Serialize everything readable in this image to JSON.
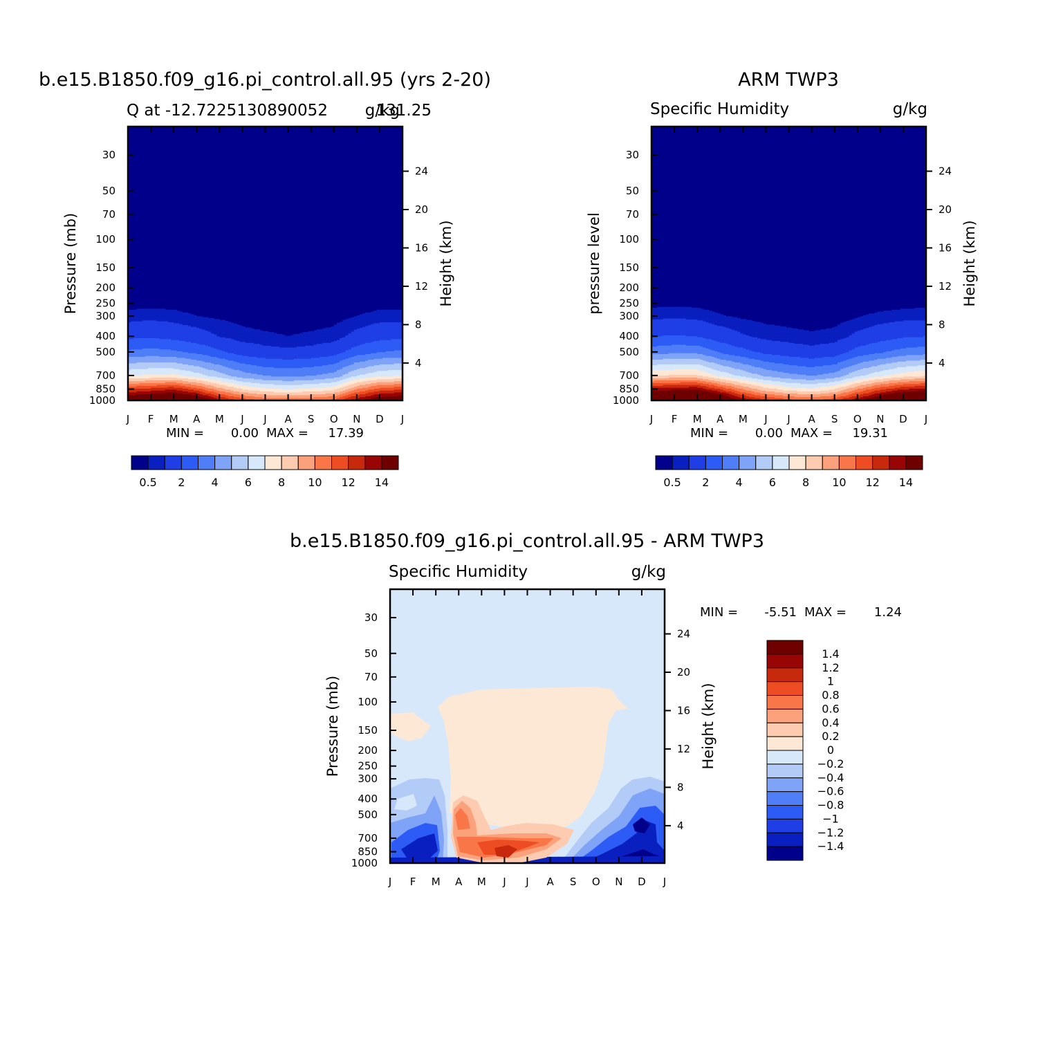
{
  "chart_data": [
    {
      "type": "heatmap",
      "id": "model",
      "main_title": "b.e15.B1850.f09_g16.pi_control.all.95 (yrs 2-20)",
      "left_string": "Q at -12.7225130890052",
      "right_string": "g/kg",
      "center_string": "131.25",
      "ylabel": "Pressure (mb)",
      "ylabel_right": "Height (km)",
      "months": [
        "J",
        "F",
        "M",
        "A",
        "M",
        "J",
        "J",
        "A",
        "S",
        "O",
        "N",
        "D",
        "J"
      ],
      "pressure_ticks": [
        "30",
        "50",
        "70",
        "100",
        "150",
        "200",
        "250",
        "300",
        "400",
        "500",
        "700",
        "850",
        "1000"
      ],
      "height_ticks": [
        "24",
        "20",
        "16",
        "12",
        "8",
        "4"
      ],
      "stats": {
        "min_label": "MIN =",
        "min": "0.00",
        "max_label": "MAX =",
        "max": "17.39"
      },
      "ylim": [
        1000,
        20
      ],
      "colorbar": {
        "levels": [
          0.5,
          1,
          2,
          3,
          4,
          5,
          6,
          7,
          8,
          9,
          10,
          11,
          12,
          13,
          14
        ],
        "labels": [
          "0.5",
          "2",
          "4",
          "6",
          "8",
          "10",
          "12",
          "14"
        ],
        "colors": [
          "#00008b",
          "#0a1fbf",
          "#1f3ee6",
          "#2c5cf5",
          "#4f7ef7",
          "#7fa3f7",
          "#b3cbf7",
          "#d8e8fb",
          "#fde8d6",
          "#fccbb0",
          "#fba27c",
          "#f97649",
          "#ee4c22",
          "#c8280c",
          "#990505",
          "#6e0000"
        ]
      },
      "profile": {
        "pressure_levels": [
          1000,
          925,
          850,
          700,
          500,
          400,
          300,
          250,
          200
        ],
        "monthly_q": [
          [
            15.5,
            14.0,
            12.0,
            7.0,
            3.2,
            1.8,
            0.7,
            0.3,
            0.1
          ],
          [
            16.0,
            14.5,
            12.5,
            7.2,
            3.4,
            1.9,
            0.8,
            0.3,
            0.1
          ],
          [
            17.0,
            15.0,
            13.0,
            7.3,
            3.2,
            1.7,
            0.7,
            0.3,
            0.1
          ],
          [
            16.0,
            14.0,
            11.5,
            6.5,
            2.8,
            1.4,
            0.5,
            0.2,
            0.1
          ],
          [
            13.5,
            11.5,
            9.5,
            5.5,
            2.2,
            1.0,
            0.4,
            0.2,
            0.1
          ],
          [
            12.0,
            10.0,
            8.0,
            4.5,
            1.6,
            0.7,
            0.3,
            0.1,
            0.05
          ],
          [
            11.0,
            9.2,
            7.3,
            4.0,
            1.3,
            0.6,
            0.2,
            0.1,
            0.05
          ],
          [
            10.8,
            9.0,
            7.0,
            3.8,
            1.2,
            0.5,
            0.2,
            0.1,
            0.05
          ],
          [
            11.0,
            9.2,
            7.3,
            4.0,
            1.3,
            0.6,
            0.2,
            0.1,
            0.05
          ],
          [
            11.5,
            9.7,
            7.7,
            4.4,
            1.6,
            0.7,
            0.3,
            0.1,
            0.05
          ],
          [
            14.0,
            12.0,
            10.0,
            6.0,
            2.5,
            1.3,
            0.5,
            0.2,
            0.1
          ],
          [
            15.5,
            13.5,
            11.5,
            6.8,
            3.0,
            1.7,
            0.7,
            0.3,
            0.1
          ],
          [
            15.5,
            14.0,
            12.0,
            7.0,
            3.2,
            1.8,
            0.7,
            0.3,
            0.1
          ]
        ]
      }
    },
    {
      "type": "heatmap",
      "id": "obs",
      "main_title": "ARM TWP3",
      "left_string": "Specific Humidity",
      "right_string": "g/kg",
      "ylabel": "pressure level",
      "ylabel_right": "Height (km)",
      "months": [
        "J",
        "F",
        "M",
        "A",
        "M",
        "J",
        "J",
        "A",
        "S",
        "O",
        "N",
        "D",
        "J"
      ],
      "pressure_ticks": [
        "30",
        "50",
        "70",
        "100",
        "150",
        "200",
        "250",
        "300",
        "400",
        "500",
        "700",
        "850",
        "1000"
      ],
      "height_ticks": [
        "24",
        "20",
        "16",
        "12",
        "8",
        "4"
      ],
      "stats": {
        "min_label": "MIN =",
        "min": "0.00",
        "max_label": "MAX =",
        "max": "19.31"
      },
      "ylim": [
        1000,
        20
      ],
      "colorbar": {
        "levels": [
          0.5,
          1,
          2,
          3,
          4,
          5,
          6,
          7,
          8,
          9,
          10,
          11,
          12,
          13,
          14
        ],
        "labels": [
          "0.5",
          "2",
          "4",
          "6",
          "8",
          "10",
          "12",
          "14"
        ],
        "colors": [
          "#00008b",
          "#0a1fbf",
          "#1f3ee6",
          "#2c5cf5",
          "#4f7ef7",
          "#7fa3f7",
          "#b3cbf7",
          "#d8e8fb",
          "#fde8d6",
          "#fccbb0",
          "#fba27c",
          "#f97649",
          "#ee4c22",
          "#c8280c",
          "#990505",
          "#6e0000"
        ]
      },
      "profile": {
        "pressure_levels": [
          1000,
          925,
          850,
          700,
          500,
          400,
          300,
          250,
          200
        ],
        "monthly_q": [
          [
            18.0,
            16.0,
            13.5,
            8.0,
            3.6,
            2.0,
            0.8,
            0.35,
            0.1
          ],
          [
            18.3,
            16.2,
            13.8,
            8.2,
            3.8,
            2.1,
            0.9,
            0.35,
            0.1
          ],
          [
            18.5,
            16.5,
            14.0,
            8.2,
            3.8,
            2.0,
            0.8,
            0.35,
            0.1
          ],
          [
            16.5,
            14.5,
            12.0,
            6.8,
            2.9,
            1.5,
            0.55,
            0.2,
            0.1
          ],
          [
            14.0,
            12.0,
            10.0,
            5.8,
            2.3,
            1.1,
            0.4,
            0.2,
            0.1
          ],
          [
            12.5,
            10.5,
            8.5,
            4.8,
            1.8,
            0.8,
            0.3,
            0.1,
            0.05
          ],
          [
            11.5,
            9.7,
            7.6,
            4.3,
            1.5,
            0.7,
            0.25,
            0.1,
            0.05
          ],
          [
            11.0,
            9.3,
            7.2,
            4.0,
            1.3,
            0.6,
            0.2,
            0.1,
            0.05
          ],
          [
            12.0,
            10.0,
            8.0,
            4.4,
            1.5,
            0.7,
            0.25,
            0.1,
            0.05
          ],
          [
            14.0,
            12.0,
            10.0,
            5.8,
            2.4,
            1.2,
            0.45,
            0.2,
            0.1
          ],
          [
            16.0,
            14.0,
            11.8,
            6.8,
            2.9,
            1.6,
            0.65,
            0.25,
            0.1
          ],
          [
            17.5,
            15.5,
            13.0,
            7.6,
            3.4,
            1.9,
            0.75,
            0.3,
            0.1
          ],
          [
            18.0,
            16.0,
            13.5,
            8.0,
            3.6,
            2.0,
            0.8,
            0.35,
            0.1
          ]
        ]
      }
    },
    {
      "type": "heatmap",
      "id": "diff",
      "main_title": "b.e15.B1850.f09_g16.pi_control.all.95 - ARM TWP3",
      "left_string": "Specific Humidity",
      "right_string": "g/kg",
      "ylabel": "Pressure (mb)",
      "ylabel_right": "Height (km)",
      "months": [
        "J",
        "F",
        "M",
        "A",
        "M",
        "J",
        "J",
        "A",
        "S",
        "O",
        "N",
        "D",
        "J"
      ],
      "pressure_ticks": [
        "30",
        "50",
        "70",
        "100",
        "150",
        "200",
        "250",
        "300",
        "400",
        "500",
        "700",
        "850",
        "1000"
      ],
      "height_ticks": [
        "24",
        "20",
        "16",
        "12",
        "8",
        "4"
      ],
      "stats": {
        "min_label": "MIN =",
        "min": "-5.51",
        "max_label": "MAX =",
        "max": "1.24"
      },
      "ylim": [
        1000,
        20
      ],
      "colorbar": {
        "levels": [
          -1.4,
          -1.2,
          -1,
          -0.8,
          -0.6,
          -0.4,
          -0.2,
          0,
          0.2,
          0.4,
          0.6,
          0.8,
          1,
          1.2,
          1.4
        ],
        "labels": [
          "1.4",
          "1.2",
          "1",
          "0.8",
          "0.6",
          "0.4",
          "0.2",
          "0",
          "-0.2",
          "-0.4",
          "-0.6",
          "-0.8",
          "-1",
          "-1.2",
          "-1.4"
        ],
        "colors": [
          "#00008b",
          "#0a1fbf",
          "#1f3ee6",
          "#2c5cf5",
          "#4f7ef7",
          "#7fa3f7",
          "#b3cbf7",
          "#d8e8fb",
          "#fde8d6",
          "#fccbb0",
          "#fba27c",
          "#f97649",
          "#ee4c22",
          "#c8280c",
          "#990505",
          "#6e0000"
        ]
      }
    }
  ]
}
